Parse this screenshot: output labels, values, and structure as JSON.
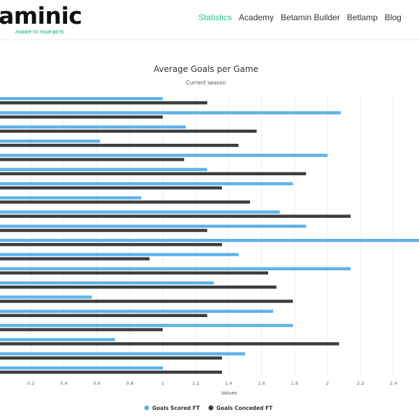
{
  "header": {
    "logo_text": "aminic",
    "tagline": "POWER TO YOUR BETS",
    "nav": [
      {
        "label": "Statistics",
        "active": true
      },
      {
        "label": "Academy",
        "active": false
      },
      {
        "label": "Betamin Builder",
        "active": false
      },
      {
        "label": "Betlamp",
        "active": false
      },
      {
        "label": "Blog",
        "active": false
      }
    ],
    "accent_color": "#2ec08f"
  },
  "chart_data": {
    "type": "bar",
    "orientation": "horizontal",
    "title": "Average Goals per Game",
    "subtitle": "Current season",
    "xlabel": "Values",
    "xticks": [
      "0.2",
      "0.4",
      "0.6",
      "0.8",
      "1",
      "1.2",
      "1.4",
      "1.6",
      "1.8",
      "2",
      "2.2",
      "2.4"
    ],
    "xlim": [
      0,
      2.6
    ],
    "grid": true,
    "legend_position": "bottom",
    "series": [
      {
        "name": "Goals Scored FT",
        "color": "#5fb3ea",
        "values": [
          1.0,
          2.08,
          1.14,
          0.62,
          2.0,
          1.27,
          1.79,
          0.87,
          1.71,
          1.87,
          2.6,
          1.46,
          2.14,
          1.31,
          0.57,
          1.67,
          1.79,
          0.71,
          1.5,
          1.0
        ]
      },
      {
        "name": "Goals Conceded FT",
        "color": "#3d3d40",
        "values": [
          1.27,
          1.0,
          1.57,
          1.46,
          1.13,
          1.87,
          1.36,
          1.53,
          2.14,
          1.27,
          1.36,
          0.92,
          1.64,
          1.69,
          1.79,
          1.27,
          1.0,
          2.07,
          1.36,
          1.36
        ]
      }
    ]
  }
}
